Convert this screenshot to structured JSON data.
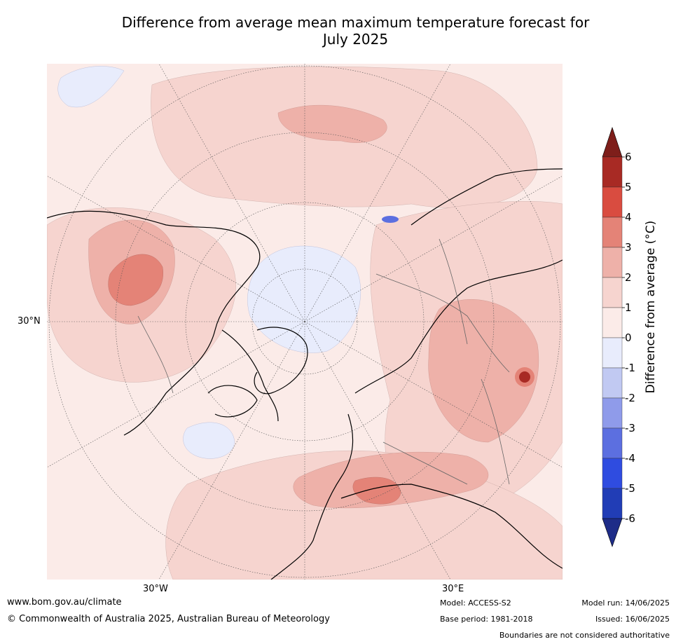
{
  "title_line1": "Difference from average mean maximum temperature forecast for",
  "title_line2": "July 2025",
  "map_labels": {
    "lat_30n": "30°N",
    "lon_30w": "30°W",
    "lon_30e": "30°E"
  },
  "colorbar": {
    "label": "Difference from average (°C)",
    "ticks": [
      "6",
      "5",
      "4",
      "3",
      "2",
      "1",
      "0",
      "-1",
      "-2",
      "-3",
      "-4",
      "-5",
      "-6"
    ],
    "colors": [
      "#a82a24",
      "#d94c40",
      "#e48377",
      "#eeb1a9",
      "#f6d4cf",
      "#fbebe8",
      "#e8ecfc",
      "#c1c9f2",
      "#8f9bea",
      "#5c6fe0",
      "#2f4ce0",
      "#213db6"
    ],
    "over_color": "#7e1e1a",
    "under_color": "#1e2c88"
  },
  "footer": {
    "url": "www.bom.gov.au/climate",
    "copyright": "© Commonwealth of Australia 2025, Australian Bureau of Meteorology",
    "model": "Model: ACCESS-S2",
    "base_period": "Base period: 1981-2018",
    "model_run": "Model run: 14/06/2025",
    "issued": "Issued: 16/06/2025",
    "disclaimer": "Boundaries are not considered authoritative"
  }
}
